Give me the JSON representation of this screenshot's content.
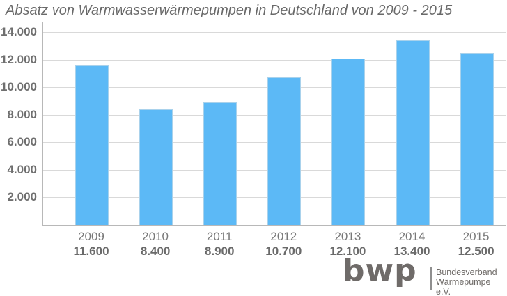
{
  "title": "Absatz von Warmwasserwärmepumpen in Deutschland von 2009 - 2015",
  "colors": {
    "bar": "#5cb9f6",
    "bar_edge": "#a9d2ec",
    "gridline": "#d9d9d9",
    "axis": "#b8b8b8",
    "label_text": "#6f6f6f",
    "title_text": "#696969",
    "logo_gray": "#6f6b69"
  },
  "chart_data": {
    "type": "bar",
    "title": "Absatz von Warmwasserwärmepumpen in Deutschland von 2009 - 2015",
    "categories": [
      "2009",
      "2010",
      "2011",
      "2012",
      "2013",
      "2014",
      "2015"
    ],
    "values": [
      11600,
      8400,
      8900,
      10700,
      12100,
      13400,
      12500
    ],
    "value_labels": [
      "11.600",
      "8.400",
      "8.900",
      "10.700",
      "12.100",
      "13.400",
      "12.500"
    ],
    "y_ticks": [
      2000,
      4000,
      6000,
      8000,
      10000,
      12000,
      14000
    ],
    "y_tick_labels": [
      "2.000",
      "4.000",
      "6.000",
      "8.000",
      "10.000",
      "12.000",
      "14.000"
    ],
    "ylim": [
      0,
      14000
    ],
    "xlabel": "",
    "ylabel": "",
    "grid": "horizontal-major",
    "legend": "none"
  },
  "logo": {
    "mark": "bwp",
    "line1": "Bundesverband",
    "line2": "Wärmepumpe e.V."
  }
}
